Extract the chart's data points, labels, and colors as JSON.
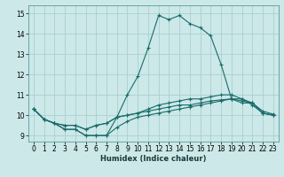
{
  "xlabel": "Humidex (Indice chaleur)",
  "ylabel": "",
  "xlim": [
    -0.5,
    23.5
  ],
  "ylim": [
    8.7,
    15.4
  ],
  "bg_color": "#cce8e8",
  "grid_color": "#aacfcf",
  "line_color": "#1a6b6b",
  "xticks": [
    0,
    1,
    2,
    3,
    4,
    5,
    6,
    7,
    8,
    9,
    10,
    11,
    12,
    13,
    14,
    15,
    16,
    17,
    18,
    19,
    20,
    21,
    22,
    23
  ],
  "yticks": [
    9,
    10,
    11,
    12,
    13,
    14,
    15
  ],
  "curves": [
    {
      "x": [
        0,
        1,
        2,
        3,
        4,
        5,
        6,
        7,
        8,
        9,
        10,
        11,
        12,
        13,
        14,
        15,
        16,
        17,
        18,
        19,
        20,
        21,
        22,
        23
      ],
      "y": [
        10.3,
        9.8,
        9.6,
        9.3,
        9.3,
        9.0,
        9.0,
        9.0,
        9.9,
        11.0,
        11.9,
        13.3,
        14.9,
        14.7,
        14.9,
        14.5,
        14.3,
        13.9,
        12.5,
        10.8,
        10.6,
        10.6,
        10.1,
        10.0
      ]
    },
    {
      "x": [
        0,
        1,
        2,
        3,
        4,
        5,
        6,
        7,
        8,
        9,
        10,
        11,
        12,
        13,
        14,
        15,
        16,
        17,
        18,
        19,
        20,
        21,
        22,
        23
      ],
      "y": [
        10.3,
        9.8,
        9.6,
        9.5,
        9.5,
        9.3,
        9.5,
        9.6,
        9.9,
        10.0,
        10.1,
        10.2,
        10.3,
        10.4,
        10.5,
        10.5,
        10.6,
        10.7,
        10.75,
        10.8,
        10.7,
        10.6,
        10.1,
        10.0
      ]
    },
    {
      "x": [
        0,
        1,
        2,
        3,
        4,
        5,
        6,
        7,
        8,
        9,
        10,
        11,
        12,
        13,
        14,
        15,
        16,
        17,
        18,
        19,
        20,
        21,
        22,
        23
      ],
      "y": [
        10.3,
        9.8,
        9.6,
        9.5,
        9.5,
        9.3,
        9.5,
        9.6,
        9.9,
        10.0,
        10.1,
        10.3,
        10.5,
        10.6,
        10.7,
        10.8,
        10.8,
        10.9,
        11.0,
        11.0,
        10.8,
        10.6,
        10.2,
        10.05
      ]
    },
    {
      "x": [
        0,
        1,
        2,
        3,
        4,
        5,
        6,
        7,
        8,
        9,
        10,
        11,
        12,
        13,
        14,
        15,
        16,
        17,
        18,
        19,
        20,
        21,
        22,
        23
      ],
      "y": [
        10.3,
        9.8,
        9.6,
        9.3,
        9.3,
        9.0,
        9.0,
        9.0,
        9.4,
        9.7,
        9.9,
        10.0,
        10.1,
        10.2,
        10.3,
        10.4,
        10.5,
        10.6,
        10.7,
        10.8,
        10.8,
        10.5,
        10.1,
        10.0
      ]
    }
  ]
}
